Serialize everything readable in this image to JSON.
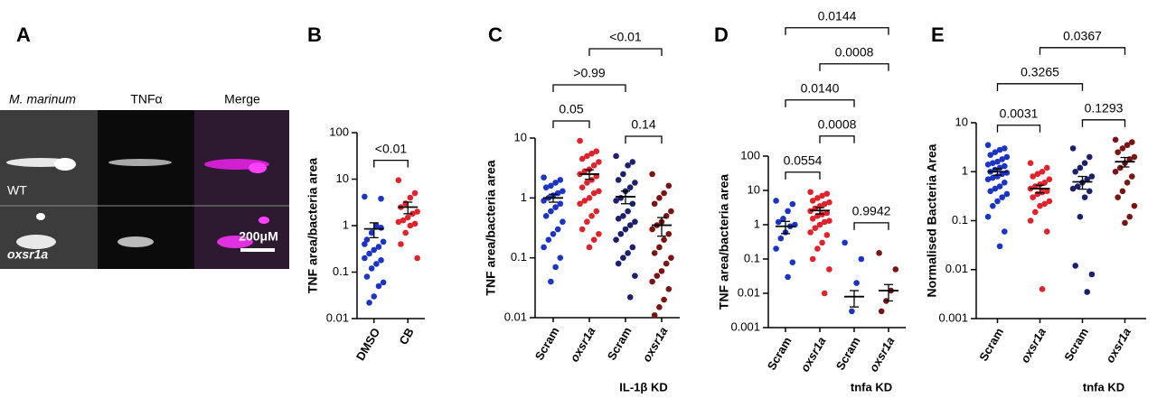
{
  "panel_a": {
    "label": "A",
    "columns": [
      "M. marinum",
      "TNFα",
      "Merge"
    ],
    "rows": [
      "WT",
      "oxsr1a"
    ],
    "scale_bar": "200μM"
  },
  "chart_data": [
    {
      "type": "strip",
      "label": "B",
      "ylabel": "TNF area/bacteria area",
      "log": true,
      "ylim": [
        0.01,
        100
      ],
      "yticks": [
        0.01,
        0.1,
        1,
        10,
        100
      ],
      "series": [
        {
          "name": "DMSO",
          "color": "#1c34c4",
          "values": [
            4.2,
            3.8,
            1.0,
            0.7,
            0.5,
            0.45,
            0.35,
            0.3,
            0.25,
            0.2,
            0.18,
            0.15,
            0.12,
            0.08,
            0.06,
            0.05,
            0.03,
            0.022,
            0.4,
            0.9
          ],
          "mean": 0.85,
          "sem": 0.3
        },
        {
          "name": "CB",
          "color": "#e0232b",
          "values": [
            9.5,
            5,
            4,
            3,
            2.5,
            2,
            1.8,
            1.5,
            1.3,
            1.2,
            1.1,
            1.0,
            0.7,
            0.4,
            0.2
          ],
          "mean": 2.5,
          "sem": 0.7
        }
      ],
      "comparisons": [
        {
          "between": [
            0,
            1
          ],
          "label": "<0.01"
        }
      ]
    },
    {
      "type": "strip",
      "label": "C",
      "ylabel": "TNF area/bacteria area",
      "log": true,
      "ylim": [
        0.01,
        10
      ],
      "yticks": [
        0.01,
        0.1,
        1,
        10
      ],
      "series": [
        {
          "name": "Scram",
          "color": "#1c34c4",
          "values": [
            2.2,
            2,
            1.8,
            1.6,
            1.5,
            1.3,
            1.2,
            1.1,
            1,
            0.9,
            0.8,
            0.7,
            0.6,
            0.5,
            0.4,
            0.3,
            0.25,
            0.2,
            0.15,
            0.1,
            0.07,
            0.04
          ],
          "mean": 1.0,
          "sem": 0.15
        },
        {
          "name": "oxsr1a",
          "italic": true,
          "color": "#e0232b",
          "values": [
            9,
            6,
            5.5,
            5,
            4.5,
            4,
            3.5,
            3,
            2.8,
            2.5,
            2.3,
            2,
            1.8,
            1.5,
            1.3,
            1.2,
            1,
            0.9,
            0.8,
            0.6,
            0.5,
            0.4,
            0.3,
            0.25,
            0.2,
            0.15
          ],
          "mean": 2.5,
          "sem": 0.45
        },
        {
          "name": "Scram",
          "color": "#1b1f6e",
          "values": [
            5,
            4,
            3.5,
            2.5,
            2,
            1.8,
            1.5,
            1.3,
            1,
            0.9,
            0.8,
            0.6,
            0.5,
            0.45,
            0.4,
            0.35,
            0.3,
            0.25,
            0.2,
            0.15,
            0.12,
            0.1,
            0.08,
            0.05,
            0.022
          ],
          "mean": 1.05,
          "sem": 0.25
        },
        {
          "name": "oxsr1a",
          "italic": true,
          "color": "#7a1414",
          "values": [
            2.5,
            1.6,
            1.2,
            1,
            0.8,
            0.6,
            0.5,
            0.4,
            0.35,
            0.3,
            0.25,
            0.2,
            0.15,
            0.12,
            0.1,
            0.08,
            0.06,
            0.05,
            0.04,
            0.03,
            0.02,
            0.015,
            0.011
          ],
          "mean": 0.35,
          "sem": 0.12
        }
      ],
      "comparisons": [
        {
          "between": [
            0,
            1
          ],
          "label": "0.05"
        },
        {
          "between": [
            2,
            3
          ],
          "label": "0.14"
        },
        {
          "between": [
            0,
            2
          ],
          "label": ">0.99"
        },
        {
          "between": [
            1,
            3
          ],
          "label": "<0.01"
        }
      ],
      "group_label": {
        "text": "IL-1β KD",
        "between": [
          2,
          3
        ]
      }
    },
    {
      "type": "strip",
      "label": "D",
      "ylabel": "TNF area/bacteria area",
      "log": true,
      "ylim": [
        0.001,
        100
      ],
      "yticks": [
        0.001,
        0.01,
        0.1,
        1,
        10,
        100
      ],
      "series": [
        {
          "name": "Scram",
          "color": "#1c34c4",
          "values": [
            5,
            4,
            2.5,
            1.5,
            1.2,
            1,
            0.9,
            0.6,
            0.4,
            0.2,
            0.08,
            0.03
          ],
          "mean": 0.9,
          "sem": 0.35
        },
        {
          "name": "oxsr1a",
          "italic": true,
          "color": "#e0232b",
          "values": [
            9,
            8,
            7,
            6,
            5,
            4.5,
            4,
            3.5,
            3,
            2.5,
            2.2,
            2,
            1.8,
            1.5,
            1.3,
            1.2,
            1,
            0.8,
            0.6,
            0.5,
            0.3,
            0.2,
            0.1,
            0.05,
            0.01
          ],
          "mean": 2.6,
          "sem": 0.55
        },
        {
          "name": "Scram",
          "color": "#1c34c4",
          "values": [
            0.3,
            0.1,
            0.02,
            0.003
          ],
          "mean": 0.008,
          "sem": 0.004
        },
        {
          "name": "oxsr1a",
          "italic": true,
          "color": "#7a1414",
          "values": [
            0.15,
            0.05,
            0.012,
            0.006,
            0.003
          ],
          "mean": 0.012,
          "sem": 0.006
        }
      ],
      "comparisons": [
        {
          "between": [
            0,
            1
          ],
          "label": "0.0554"
        },
        {
          "between": [
            2,
            3
          ],
          "label": "0.9942"
        },
        {
          "between": [
            1,
            2
          ],
          "label": "0.0008"
        },
        {
          "between": [
            0,
            2
          ],
          "label": "0.0140"
        },
        {
          "between": [
            1,
            3
          ],
          "label": "0.0008"
        },
        {
          "between": [
            0,
            3
          ],
          "label": "0.0144"
        }
      ],
      "group_label": {
        "text": "tnfa KD",
        "between": [
          2,
          3
        ]
      }
    },
    {
      "type": "strip",
      "label": "E",
      "ylabel": "Normalised Bacteria Area",
      "log": true,
      "ylim": [
        0.001,
        10
      ],
      "yticks": [
        0.001,
        0.01,
        0.1,
        1,
        10
      ],
      "series": [
        {
          "name": "Scram",
          "color": "#1c34c4",
          "values": [
            3.5,
            3,
            2.8,
            2.5,
            2.2,
            2,
            1.8,
            1.6,
            1.5,
            1.4,
            1.3,
            1.2,
            1.1,
            1,
            0.95,
            0.9,
            0.8,
            0.75,
            0.7,
            0.6,
            0.5,
            0.45,
            0.4,
            0.35,
            0.3,
            0.25,
            0.2,
            0.12,
            0.06,
            0.03
          ],
          "mean": 1.0,
          "sem": 0.15
        },
        {
          "name": "oxsr1a",
          "italic": true,
          "color": "#e0232b",
          "values": [
            1.5,
            1.2,
            1,
            0.9,
            0.8,
            0.7,
            0.6,
            0.55,
            0.5,
            0.45,
            0.4,
            0.38,
            0.35,
            0.3,
            0.25,
            0.22,
            0.2,
            0.15,
            0.1,
            0.06,
            0.004
          ],
          "mean": 0.45,
          "sem": 0.08
        },
        {
          "name": "Scram",
          "color": "#1b1f6e",
          "values": [
            3,
            2,
            1.5,
            1.2,
            1,
            0.8,
            0.7,
            0.6,
            0.5,
            0.45,
            0.4,
            0.3,
            0.12,
            0.012,
            0.008,
            0.0035
          ],
          "mean": 0.62,
          "sem": 0.18
        },
        {
          "name": "oxsr1a",
          "italic": true,
          "color": "#7a1414",
          "values": [
            4.5,
            4,
            3.5,
            3,
            2.5,
            2,
            1.8,
            1.5,
            1.2,
            1,
            0.8,
            0.6,
            0.4,
            0.3,
            0.2,
            0.12,
            0.09
          ],
          "mean": 1.6,
          "sem": 0.35
        }
      ],
      "comparisons": [
        {
          "between": [
            0,
            1
          ],
          "label": "0.0031"
        },
        {
          "between": [
            2,
            3
          ],
          "label": "0.1293"
        },
        {
          "between": [
            0,
            2
          ],
          "label": "0.3265"
        },
        {
          "between": [
            1,
            3
          ],
          "label": "0.0367"
        }
      ],
      "group_label": {
        "text": "tnfa KD",
        "between": [
          2,
          3
        ]
      }
    }
  ]
}
